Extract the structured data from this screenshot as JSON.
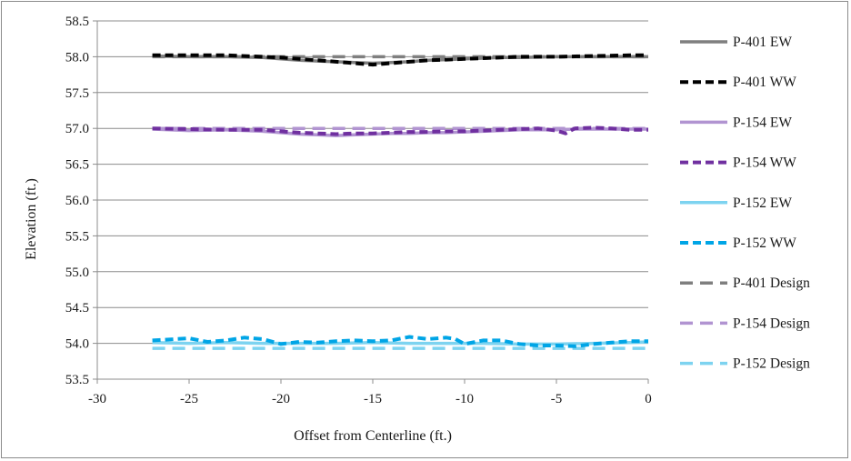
{
  "chart_data": {
    "type": "line",
    "xlabel": "Offset from Centerline (ft.)",
    "ylabel": "Elevation (ft.)",
    "xlim": [
      -30,
      0
    ],
    "ylim": [
      53.5,
      58.5
    ],
    "x_ticks": [
      -30,
      -25,
      -20,
      -15,
      -10,
      -5,
      0
    ],
    "y_ticks": [
      53.5,
      54.0,
      54.5,
      55.0,
      55.5,
      56.0,
      56.5,
      57.0,
      57.5,
      58.0,
      58.5
    ],
    "y_tick_labels": [
      "53.5",
      "54.0",
      "54.5",
      "55.0",
      "55.5",
      "56.0",
      "56.5",
      "57.0",
      "57.5",
      "58.0",
      "58.5"
    ],
    "grid": "horizontal",
    "legend_position": "right",
    "series": [
      {
        "name": "P-401 EW",
        "color": "#7f7f7f",
        "dash": "solid",
        "x": [
          -27,
          -25,
          -23,
          -21,
          -20,
          -19,
          -18,
          -17,
          -16,
          -15,
          -14,
          -13,
          -12,
          -11,
          -10,
          -9,
          -8,
          -7,
          -5,
          -3,
          -1,
          0
        ],
        "y": [
          58.01,
          58.0,
          58.0,
          57.99,
          57.97,
          57.95,
          57.94,
          57.93,
          57.92,
          57.91,
          57.92,
          57.93,
          57.95,
          57.96,
          57.97,
          57.98,
          57.99,
          57.99,
          58.0,
          58.0,
          58.0,
          58.0
        ]
      },
      {
        "name": "P-401 WW",
        "color": "#000000",
        "dash": "dash",
        "x": [
          -27,
          -25,
          -23,
          -21,
          -20,
          -19,
          -18,
          -17,
          -16,
          -15,
          -14,
          -13,
          -12,
          -11,
          -10,
          -9,
          -8,
          -7,
          -5,
          -3,
          -1,
          0
        ],
        "y": [
          58.02,
          58.02,
          58.02,
          58.0,
          57.99,
          57.97,
          57.95,
          57.93,
          57.91,
          57.89,
          57.91,
          57.93,
          57.95,
          57.96,
          57.97,
          57.98,
          57.99,
          58.0,
          58.0,
          58.01,
          58.02,
          58.02
        ]
      },
      {
        "name": "P-154 EW",
        "color": "#b194d1",
        "dash": "solid",
        "x": [
          -27,
          -25,
          -23,
          -21,
          -20,
          -19,
          -18,
          -17,
          -16,
          -15,
          -14,
          -13,
          -12,
          -11,
          -10,
          -9,
          -8,
          -7,
          -6,
          -5,
          -4,
          -3,
          -1,
          0
        ],
        "y": [
          56.99,
          56.97,
          56.98,
          56.96,
          56.94,
          56.92,
          56.91,
          56.9,
          56.91,
          56.92,
          56.93,
          56.93,
          56.94,
          56.94,
          56.95,
          56.96,
          56.97,
          56.98,
          56.98,
          56.98,
          56.99,
          56.99,
          56.99,
          56.99
        ]
      },
      {
        "name": "P-154 WW",
        "color": "#7030a0",
        "dash": "dash",
        "x": [
          -27,
          -25,
          -23,
          -21,
          -20,
          -19,
          -18,
          -17,
          -16,
          -15,
          -14,
          -13,
          -12,
          -11,
          -10,
          -9,
          -8,
          -7,
          -6,
          -5,
          -4.5,
          -4,
          -3,
          -2,
          -1,
          0
        ],
        "y": [
          57.0,
          56.99,
          56.98,
          56.98,
          56.96,
          56.94,
          56.93,
          56.92,
          56.93,
          56.93,
          56.94,
          56.95,
          56.95,
          56.96,
          56.96,
          56.97,
          56.98,
          56.99,
          57.0,
          56.97,
          56.93,
          57.0,
          57.01,
          57.0,
          56.98,
          56.98
        ]
      },
      {
        "name": "P-152 EW",
        "color": "#7dd3f0",
        "dash": "solid",
        "x": [
          -27,
          -25,
          -23,
          -21,
          -19,
          -17,
          -15,
          -13,
          -11,
          -9,
          -7,
          -5,
          -3,
          -1,
          0
        ],
        "y": [
          54.01,
          54.0,
          54.01,
          54.0,
          54.0,
          54.0,
          54.01,
          54.0,
          54.0,
          54.0,
          53.99,
          53.99,
          54.0,
          54.01,
          54.02
        ]
      },
      {
        "name": "P-152 WW",
        "color": "#00a5e6",
        "dash": "dash",
        "x": [
          -27,
          -25,
          -24,
          -23,
          -22,
          -21,
          -20,
          -19,
          -18,
          -17,
          -16,
          -15,
          -14,
          -13,
          -12,
          -11,
          -10.5,
          -10,
          -9,
          -8,
          -7,
          -6,
          -5,
          -4,
          -3,
          -2,
          -1,
          0
        ],
        "y": [
          54.04,
          54.07,
          54.02,
          54.04,
          54.08,
          54.06,
          53.99,
          54.02,
          54.01,
          54.03,
          54.04,
          54.03,
          54.04,
          54.09,
          54.06,
          54.08,
          54.06,
          53.99,
          54.04,
          54.04,
          53.99,
          53.97,
          53.97,
          53.96,
          53.99,
          54.01,
          54.03,
          54.03
        ]
      },
      {
        "name": "P-401 Design",
        "color": "#7f7f7f",
        "dash": "longdash",
        "x": [
          -27,
          0
        ],
        "y": [
          58.0,
          58.0
        ]
      },
      {
        "name": "P-154 Design",
        "color": "#b194d1",
        "dash": "longdash",
        "x": [
          -27,
          0
        ],
        "y": [
          57.0,
          57.0
        ]
      },
      {
        "name": "P-152 Design",
        "color": "#7dd3f0",
        "dash": "longdash",
        "x": [
          -27,
          0
        ],
        "y": [
          53.93,
          53.93
        ]
      }
    ]
  }
}
